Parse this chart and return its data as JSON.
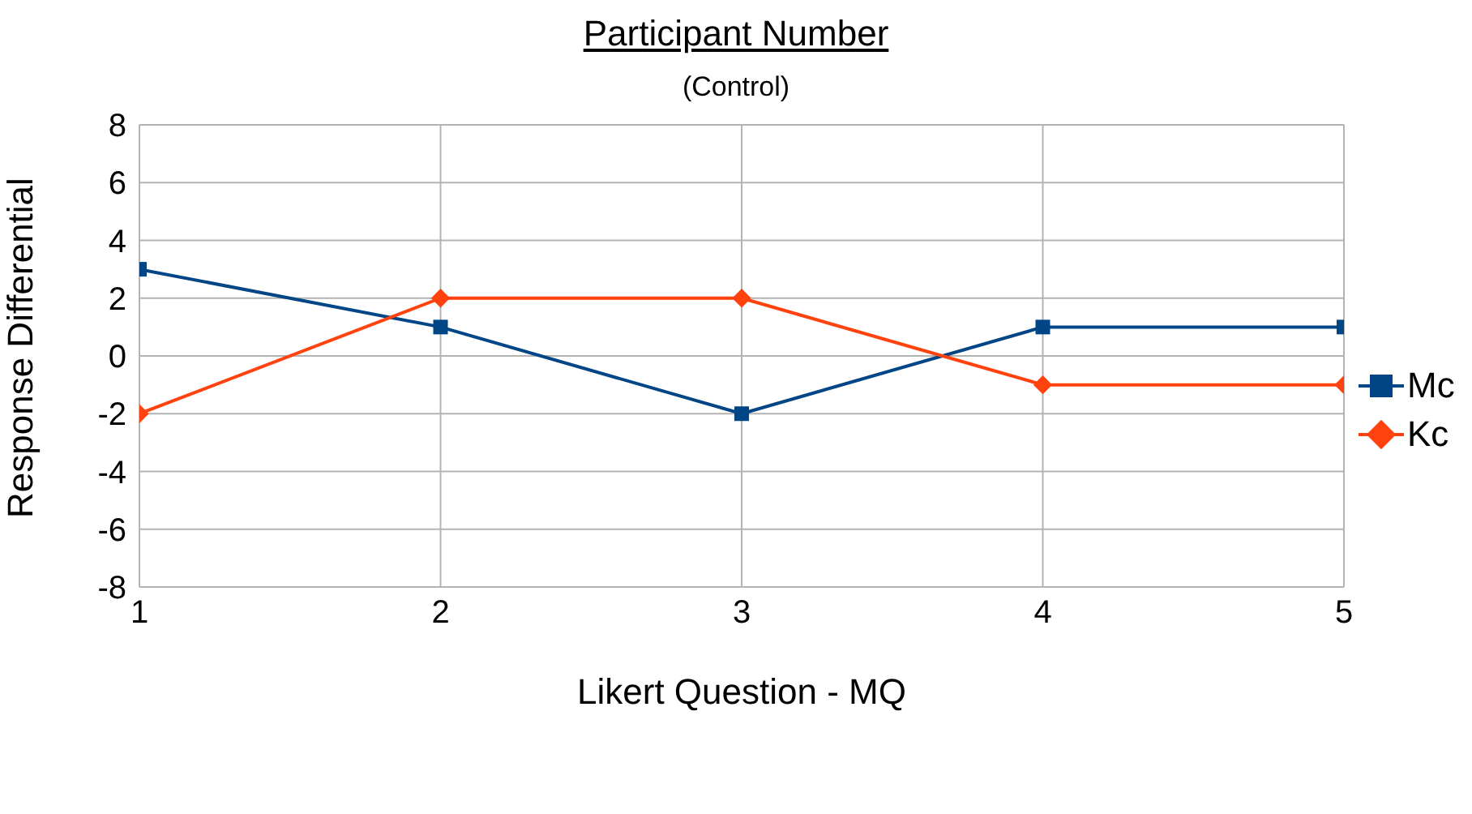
{
  "chart_data": {
    "type": "line",
    "title": "Participant Number",
    "subtitle": "(Control)",
    "xlabel": "Likert Question - MQ",
    "ylabel": "Response Differential",
    "x": [
      1,
      2,
      3,
      4,
      5
    ],
    "xlim": [
      1,
      5
    ],
    "xticks": [
      1,
      2,
      3,
      4,
      5
    ],
    "ylim": [
      -8,
      8
    ],
    "yticks": [
      -8,
      -6,
      -4,
      -2,
      0,
      2,
      4,
      6,
      8
    ],
    "grid": true,
    "legend": "right",
    "line_style": "solid",
    "series": [
      {
        "name": "Mc",
        "color": "#004586",
        "marker": "square",
        "values": [
          3,
          1,
          -2,
          1,
          1
        ]
      },
      {
        "name": "Kc",
        "color": "#ff420e",
        "marker": "diamond",
        "values": [
          -2,
          2,
          2,
          -1,
          -1
        ]
      }
    ]
  }
}
